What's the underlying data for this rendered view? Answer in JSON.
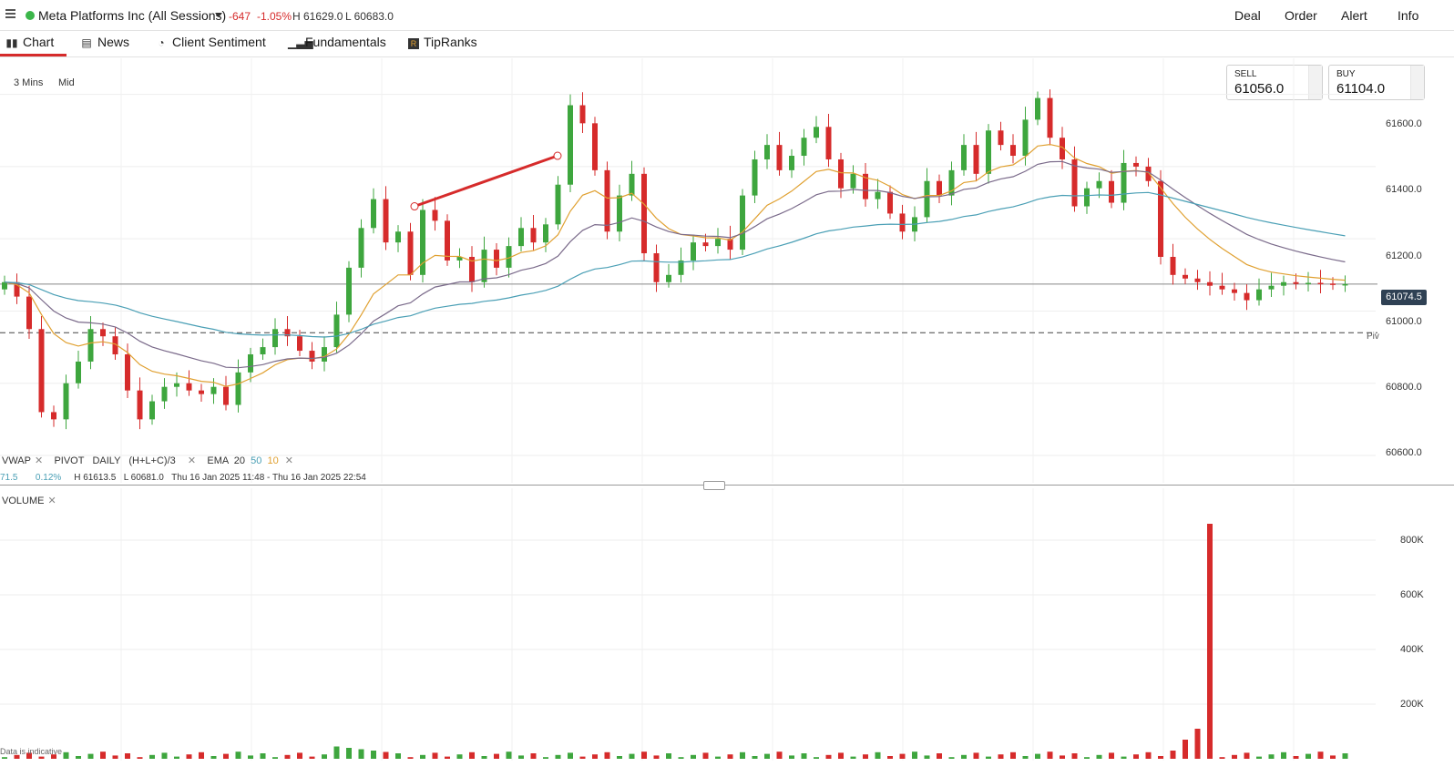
{
  "header": {
    "instrument": "Meta Platforms Inc (All Sessions)",
    "status_color": "#3cb64a",
    "change": "-647",
    "change_pct": "-1.05%",
    "high": "H 61629.0",
    "low": "L 60683.0",
    "actions": [
      "Deal",
      "Order",
      "Alert",
      "Info"
    ]
  },
  "tabs": [
    {
      "label": "Chart",
      "icon": "bar-chart-icon",
      "active": true
    },
    {
      "label": "News",
      "icon": "newspaper-icon"
    },
    {
      "label": "Client Sentiment",
      "icon": "sentiment-gauge-icon"
    },
    {
      "label": "Fundamentals",
      "icon": "column-chart-icon"
    },
    {
      "label": "TipRanks",
      "icon": "tipranks-logo-icon"
    }
  ],
  "toolbar": {
    "timeframe": "3 Mins",
    "price_type": "Mid"
  },
  "quotes": {
    "sell_label": "SELL",
    "sell_value": "61056.0",
    "buy_label": "BUY",
    "buy_value": "61104.0"
  },
  "price_axis": {
    "labels": [
      "61600.0",
      "61400.0",
      "61200.0",
      "61000.0",
      "60800.0",
      "60600.0"
    ],
    "last_price": "61074.5",
    "pivot_label": "Piv"
  },
  "legend": {
    "vwap": "VWAP",
    "pivot": "PIVOT",
    "pivot_period": "DAILY",
    "pivot_formula": "(H+L+C)/3",
    "ema": "EMA",
    "ema_periods": [
      "20",
      "50",
      "10"
    ],
    "value_partial": "71.5",
    "value_pct": "0.12%",
    "high": "H 61613.5",
    "low": "L 60681.0",
    "range": "Thu 16 Jan 2025 11:48 - Thu 16 Jan 2025 22:54"
  },
  "volume": {
    "title": "VOLUME",
    "axis_labels": [
      "800K",
      "600K",
      "400K",
      "200K"
    ],
    "note": "Data is indicative"
  },
  "colors": {
    "up": "#3ea63e",
    "down": "#d62b2b",
    "ema10": "#e0a030",
    "ema20": "#4a9fb5",
    "ema50": "#b5d6dc",
    "vwap": "#7a6a8a"
  },
  "chart_data": {
    "type": "candlestick",
    "ylim": [
      60600,
      61700
    ],
    "pivot": 60940,
    "last": 61074.5,
    "closes": [
      61080,
      61040,
      60950,
      60720,
      60700,
      60800,
      60860,
      60950,
      60930,
      60880,
      60780,
      60700,
      60750,
      60790,
      60800,
      60780,
      60770,
      60790,
      60740,
      60830,
      60880,
      60900,
      60950,
      60930,
      60890,
      60860,
      60900,
      60990,
      61120,
      61230,
      61310,
      61190,
      61220,
      61100,
      61280,
      61250,
      61140,
      61150,
      61080,
      61170,
      61120,
      61180,
      61230,
      61190,
      61240,
      61350,
      61570,
      61520,
      61390,
      61220,
      61320,
      61380,
      61160,
      61080,
      61100,
      61140,
      61190,
      61180,
      61200,
      61170,
      61320,
      61420,
      61460,
      61390,
      61430,
      61480,
      61510,
      61420,
      61340,
      61380,
      61310,
      61330,
      61270,
      61220,
      61260,
      61360,
      61320,
      61390,
      61460,
      61380,
      61500,
      61460,
      61430,
      61530,
      61590,
      61480,
      61420,
      61290,
      61340,
      61360,
      61300,
      61410,
      61400,
      61360,
      61150,
      61100,
      61090,
      61080,
      61070,
      61060,
      61050,
      61030,
      61060,
      61070,
      61080,
      61075,
      61078,
      61076,
      61074,
      61074.5
    ],
    "volume_spike_k": 860
  }
}
